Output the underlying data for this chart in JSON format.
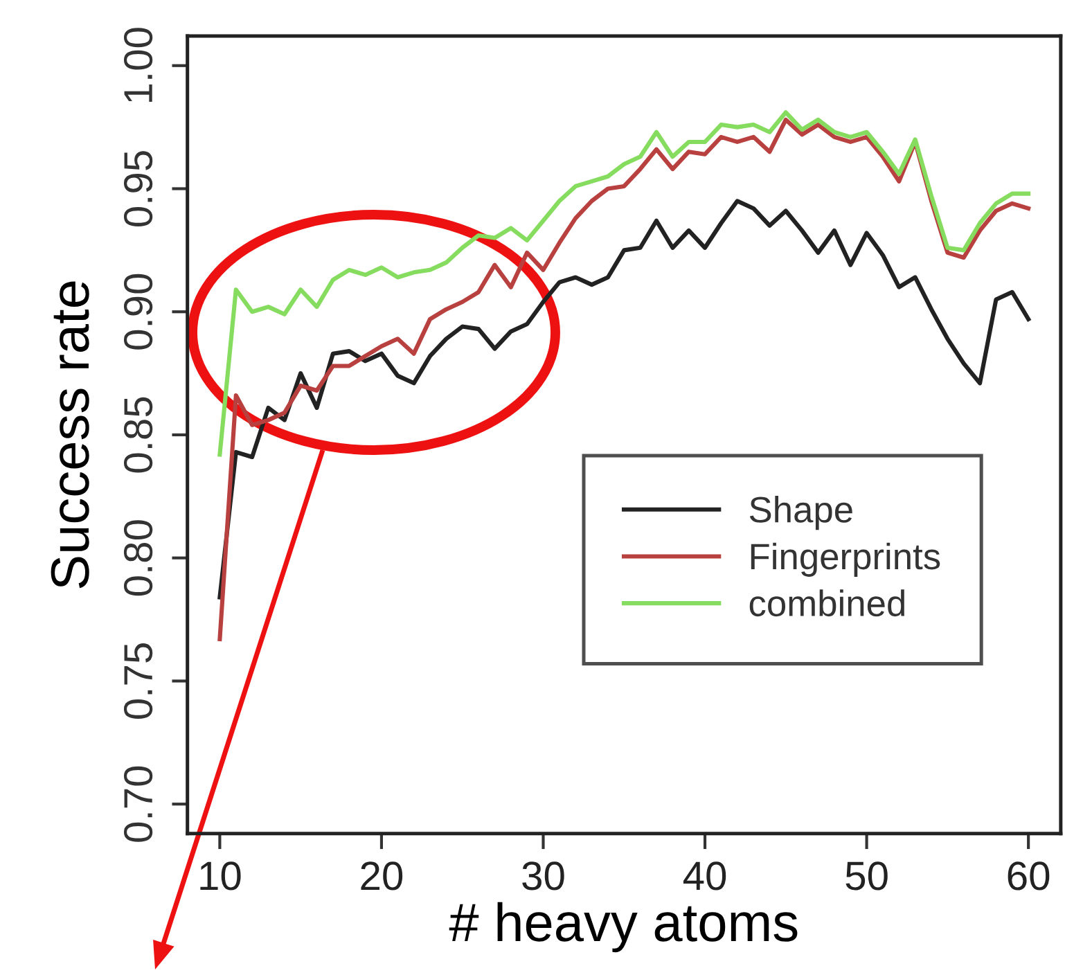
{
  "chart_data": {
    "type": "line",
    "xlabel": "# heavy atoms",
    "ylabel": "Success rate",
    "x": [
      10,
      11,
      12,
      13,
      14,
      15,
      16,
      17,
      18,
      19,
      20,
      21,
      22,
      23,
      24,
      25,
      26,
      27,
      28,
      29,
      30,
      31,
      32,
      33,
      34,
      35,
      36,
      37,
      38,
      39,
      40,
      41,
      42,
      43,
      44,
      45,
      46,
      47,
      48,
      49,
      50,
      51,
      52,
      53,
      54,
      55,
      56,
      57,
      58,
      59,
      60
    ],
    "series": [
      {
        "name": "Shape",
        "color": "#222222",
        "values": [
          0.784,
          0.843,
          0.841,
          0.861,
          0.856,
          0.875,
          0.861,
          0.883,
          0.884,
          0.88,
          0.883,
          0.874,
          0.871,
          0.882,
          0.889,
          0.894,
          0.893,
          0.885,
          0.892,
          0.895,
          0.904,
          0.912,
          0.914,
          0.911,
          0.914,
          0.925,
          0.926,
          0.937,
          0.926,
          0.933,
          0.926,
          0.936,
          0.945,
          0.942,
          0.935,
          0.941,
          0.933,
          0.924,
          0.933,
          0.919,
          0.932,
          0.923,
          0.91,
          0.914,
          0.901,
          0.889,
          0.879,
          0.871,
          0.905,
          0.908,
          0.897
        ]
      },
      {
        "name": "Fingerprints",
        "color": "#b8403e",
        "values": [
          0.767,
          0.866,
          0.854,
          0.856,
          0.859,
          0.87,
          0.868,
          0.878,
          0.878,
          0.882,
          0.886,
          0.889,
          0.883,
          0.897,
          0.901,
          0.904,
          0.908,
          0.919,
          0.91,
          0.924,
          0.917,
          0.928,
          0.938,
          0.945,
          0.95,
          0.951,
          0.958,
          0.966,
          0.958,
          0.965,
          0.964,
          0.971,
          0.969,
          0.971,
          0.965,
          0.978,
          0.972,
          0.976,
          0.971,
          0.969,
          0.971,
          0.963,
          0.953,
          0.969,
          0.945,
          0.924,
          0.922,
          0.933,
          0.941,
          0.944,
          0.942
        ]
      },
      {
        "name": "combined",
        "color": "#86dc5e",
        "values": [
          0.842,
          0.909,
          0.9,
          0.902,
          0.899,
          0.909,
          0.902,
          0.913,
          0.917,
          0.915,
          0.918,
          0.914,
          0.916,
          0.917,
          0.92,
          0.926,
          0.931,
          0.93,
          0.934,
          0.929,
          0.937,
          0.945,
          0.951,
          0.953,
          0.955,
          0.96,
          0.963,
          0.973,
          0.963,
          0.969,
          0.969,
          0.976,
          0.975,
          0.976,
          0.973,
          0.981,
          0.974,
          0.978,
          0.973,
          0.971,
          0.973,
          0.965,
          0.956,
          0.97,
          0.947,
          0.926,
          0.925,
          0.936,
          0.944,
          0.948,
          0.948
        ]
      }
    ],
    "xlim": [
      8,
      62
    ],
    "xticks": [
      10,
      20,
      30,
      40,
      50,
      60
    ],
    "ylim": [
      0.688,
      1.012
    ],
    "yticks": [
      {
        "value": 0.7,
        "label": "0.70"
      },
      {
        "value": 0.75,
        "label": "0.75"
      },
      {
        "value": 0.8,
        "label": "0.80"
      },
      {
        "value": 0.85,
        "label": "0.85"
      },
      {
        "value": 0.9,
        "label": "0.90"
      },
      {
        "value": 0.95,
        "label": "0.95"
      },
      {
        "value": 1.0,
        "label": "1.00"
      }
    ],
    "grid": false,
    "legend": "bottom right",
    "marker": "none",
    "line_style": "solid"
  }
}
